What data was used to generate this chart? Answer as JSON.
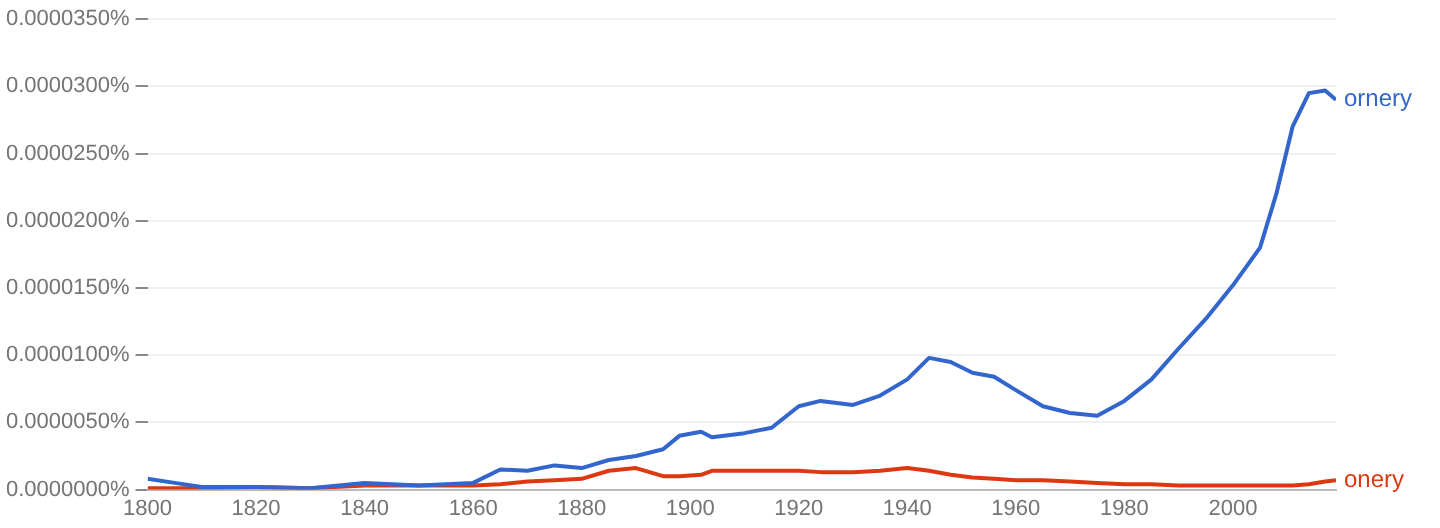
{
  "chart_data": {
    "type": "line",
    "x": [
      1800,
      1805,
      1810,
      1820,
      1830,
      1840,
      1850,
      1860,
      1865,
      1870,
      1875,
      1880,
      1885,
      1890,
      1895,
      1898,
      1902,
      1904,
      1910,
      1915,
      1920,
      1924,
      1930,
      1935,
      1940,
      1944,
      1948,
      1952,
      1956,
      1960,
      1965,
      1970,
      1975,
      1980,
      1985,
      1990,
      1995,
      2000,
      2005,
      2008,
      2011,
      2014,
      2017,
      2019
    ],
    "series": [
      {
        "name": "ornery",
        "color": "#3366cc",
        "values": [
          8e-07,
          5e-07,
          2e-07,
          2e-07,
          1e-07,
          5e-07,
          3e-07,
          5e-07,
          1.5e-06,
          1.4e-06,
          1.8e-06,
          1.6e-06,
          2.2e-06,
          2.5e-06,
          3e-06,
          4e-06,
          4.3e-06,
          3.9e-06,
          4.2e-06,
          4.6e-06,
          6.2e-06,
          6.6e-06,
          6.3e-06,
          7e-06,
          8.2e-06,
          9.8e-06,
          9.5e-06,
          8.7e-06,
          8.4e-06,
          7.4e-06,
          6.2e-06,
          5.7e-06,
          5.5e-06,
          6.6e-06,
          8.2e-06,
          1.05e-05,
          1.27e-05,
          1.52e-05,
          1.8e-05,
          2.2e-05,
          2.7e-05,
          2.95e-05,
          2.97e-05,
          2.9e-05
        ]
      },
      {
        "name": "onery",
        "color": "#dc3912",
        "values": [
          1e-07,
          1e-07,
          1e-07,
          2e-07,
          1e-07,
          3e-07,
          3e-07,
          3e-07,
          4e-07,
          6e-07,
          7e-07,
          8e-07,
          1.4e-06,
          1.6e-06,
          1e-06,
          1e-06,
          1.1e-06,
          1.4e-06,
          1.4e-06,
          1.4e-06,
          1.4e-06,
          1.3e-06,
          1.3e-06,
          1.4e-06,
          1.6e-06,
          1.4e-06,
          1.1e-06,
          9e-07,
          8e-07,
          7e-07,
          7e-07,
          6e-07,
          5e-07,
          4e-07,
          4e-07,
          3e-07,
          3e-07,
          3e-07,
          3e-07,
          3e-07,
          3e-07,
          4e-07,
          6e-07,
          7e-07
        ]
      }
    ],
    "xlim": [
      1800,
      2019
    ],
    "xticks": [
      1800,
      1820,
      1840,
      1860,
      1880,
      1900,
      1920,
      1940,
      1960,
      1980,
      2000
    ],
    "ylim": [
      0,
      3.5e-05
    ],
    "yticks": [
      {
        "value": 0,
        "label": "0.0000000%"
      },
      {
        "value": 5e-06,
        "label": "0.0000050%"
      },
      {
        "value": 1e-05,
        "label": "0.0000100%"
      },
      {
        "value": 1.5e-05,
        "label": "0.0000150%"
      },
      {
        "value": 2e-05,
        "label": "0.0000200%"
      },
      {
        "value": 2.5e-05,
        "label": "0.0000250%"
      },
      {
        "value": 3e-05,
        "label": "0.0000300%"
      },
      {
        "value": 3.5e-05,
        "label": "0.0000350%"
      }
    ],
    "grid": "y",
    "legend": false,
    "marker": "none",
    "line_style": "solid"
  }
}
